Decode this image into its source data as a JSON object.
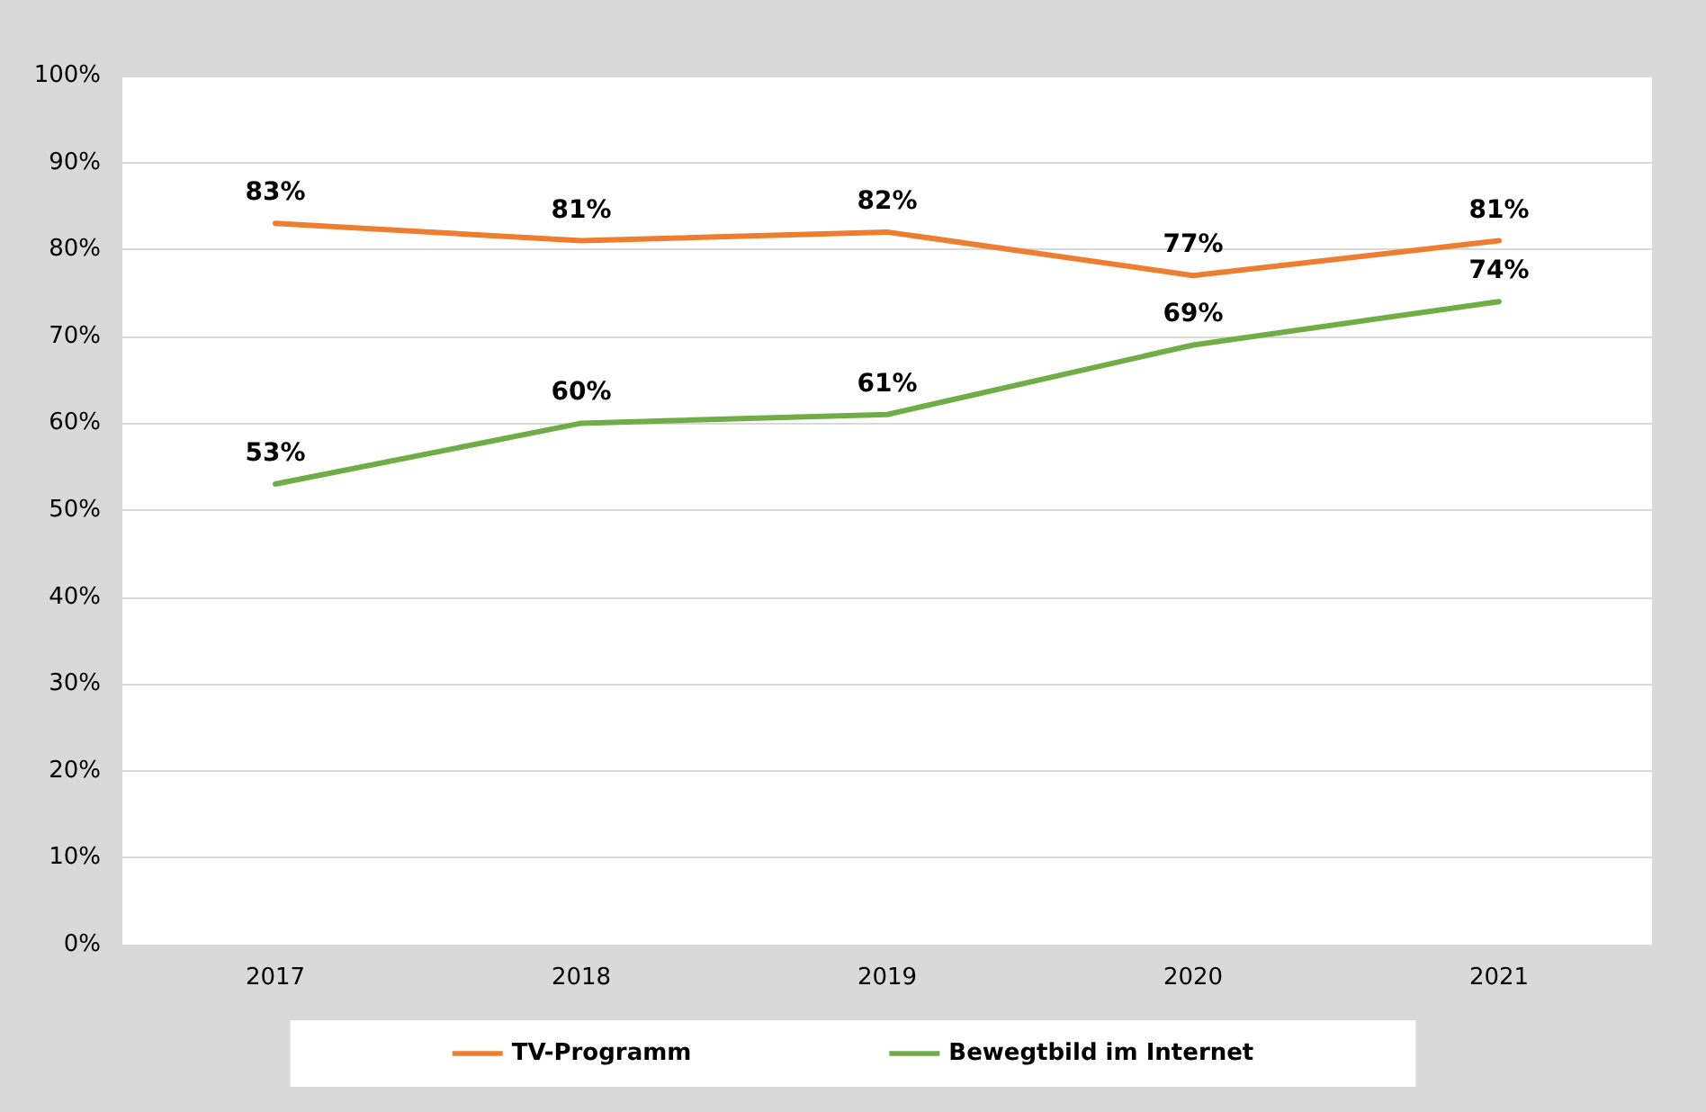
{
  "chart_data": {
    "type": "line",
    "categories": [
      "2017",
      "2018",
      "2019",
      "2020",
      "2021"
    ],
    "series": [
      {
        "name": "TV-Programm",
        "color": "#ed7d31",
        "values": [
          83,
          81,
          82,
          77,
          81
        ],
        "value_labels": [
          "83%",
          "81%",
          "82%",
          "77%",
          "81%"
        ]
      },
      {
        "name": "Bewegtbild im Internet",
        "color": "#70ad47",
        "values": [
          53,
          60,
          61,
          69,
          74
        ],
        "value_labels": [
          "53%",
          "60%",
          "61%",
          "69%",
          "74%"
        ]
      }
    ],
    "ylim": [
      0,
      100
    ],
    "yticks": [
      {
        "value": 0,
        "label": "0%"
      },
      {
        "value": 10,
        "label": "10%"
      },
      {
        "value": 20,
        "label": "20%"
      },
      {
        "value": 30,
        "label": "30%"
      },
      {
        "value": 40,
        "label": "40%"
      },
      {
        "value": 50,
        "label": "50%"
      },
      {
        "value": 60,
        "label": "60%"
      },
      {
        "value": 70,
        "label": "70%"
      },
      {
        "value": 80,
        "label": "80%"
      },
      {
        "value": 90,
        "label": "90%"
      },
      {
        "value": 100,
        "label": "100%"
      }
    ],
    "grid": "y",
    "legend": "bottom",
    "marker": "none",
    "line_style": "solid"
  }
}
